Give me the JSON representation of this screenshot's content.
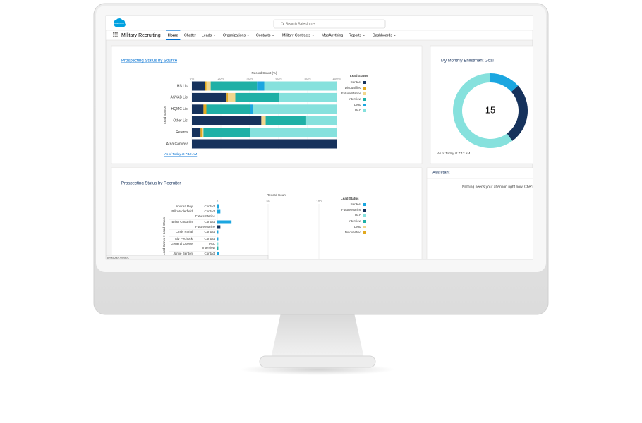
{
  "header": {
    "logo": "salesforce",
    "search_placeholder": "Search Salesforce"
  },
  "nav": {
    "app_name": "Military Recruiting",
    "tabs": [
      {
        "label": "Home",
        "active": true,
        "dropdown": false
      },
      {
        "label": "Chatter",
        "active": false,
        "dropdown": false
      },
      {
        "label": "Leads",
        "active": false,
        "dropdown": true
      },
      {
        "label": "Organizations",
        "active": false,
        "dropdown": true
      },
      {
        "label": "Contacts",
        "active": false,
        "dropdown": true
      },
      {
        "label": "Military Contracts",
        "active": false,
        "dropdown": true
      },
      {
        "label": "MapAnything",
        "active": false,
        "dropdown": false
      },
      {
        "label": "Reports",
        "active": false,
        "dropdown": true
      },
      {
        "label": "Dashboards",
        "active": false,
        "dropdown": true
      }
    ]
  },
  "source_chart": {
    "type": "stacked-bar",
    "title": "Prospecting Status by Source",
    "x_axis_title": "Record Count (%)",
    "y_axis_title": "Lead Source",
    "xlim": [
      0,
      100
    ],
    "xticks": [
      {
        "value": 0,
        "label": "0%"
      },
      {
        "value": 20,
        "label": "20%"
      },
      {
        "value": 40,
        "label": "40%"
      },
      {
        "value": 60,
        "label": "60%"
      },
      {
        "value": 80,
        "label": "80%"
      },
      {
        "value": 100,
        "label": "100%"
      }
    ],
    "categories": [
      "HS List",
      "ASVAB List",
      "HQMC List",
      "Other List",
      "Referral",
      "Area Canvass"
    ],
    "legend_title": "Lead Status",
    "series": [
      {
        "name": "Contact",
        "color": "#16325c",
        "values": [
          9,
          24,
          8,
          48,
          6,
          100
        ]
      },
      {
        "name": "Disqualified",
        "color": "#e2a91f",
        "values": [
          1,
          1,
          2,
          0,
          1,
          0
        ]
      },
      {
        "name": "Future Marine",
        "color": "#f2d68d",
        "values": [
          3,
          5,
          0,
          3,
          1,
          0
        ]
      },
      {
        "name": "Interview",
        "color": "#1fb0a6",
        "values": [
          32,
          30,
          30,
          28,
          32,
          0
        ]
      },
      {
        "name": "Lead",
        "color": "#1ba6e0",
        "values": [
          5,
          0,
          2,
          0,
          0,
          0
        ]
      },
      {
        "name": "PAC",
        "color": "#86e1dd",
        "values": [
          50,
          40,
          58,
          21,
          60,
          0
        ]
      }
    ],
    "footer": "As of Today at 7:12 AM"
  },
  "goal_chart": {
    "type": "donut",
    "title": "My Monthly Enlistment Goal",
    "center_label": 15,
    "values": [
      2,
      4,
      9
    ],
    "colors": [
      "#1ba6e0",
      "#16325c",
      "#86e1dd"
    ],
    "footer": "As of Today at 7:12 AM"
  },
  "assistant": {
    "title": "Assistant",
    "message": "Nothing needs your attention right now. Chec"
  },
  "recruiter_chart": {
    "type": "bar",
    "title": "Prospecting Status by Recruiter",
    "x_axis_title": "Record Count",
    "y_axis_title": "Lead Owner > Lead Status",
    "xlim": [
      0,
      100
    ],
    "xticks": [
      0,
      50,
      100
    ],
    "rows": [
      {
        "owner": "Andrea Roy",
        "status": "Contact",
        "value": 2,
        "color": "#1ba6e0"
      },
      {
        "owner": "Bill Woolerfield",
        "status": "Contact",
        "value": 3,
        "color": "#1ba6e0"
      },
      {
        "owner": null,
        "status": "Future Marine",
        "value": 0,
        "color": "#16325c"
      },
      {
        "owner": "Brian Coughlin",
        "status": "Contact",
        "value": 14,
        "color": "#1ba6e0"
      },
      {
        "owner": null,
        "status": "Future Marine",
        "value": 3,
        "color": "#16325c"
      },
      {
        "owner": "Cindy Parial",
        "status": "Contact",
        "value": 1,
        "color": "#1ba6e0"
      },
      {
        "owner": "Ely Pechuck",
        "status": "Contact",
        "value": 1,
        "color": "#1ba6e0"
      },
      {
        "owner": "General Queue",
        "status": "PAC",
        "value": 1,
        "color": "#86e1dd"
      },
      {
        "owner": null,
        "status": "Interview",
        "value": 1,
        "color": "#1fb0a6"
      },
      {
        "owner": "Jamie Benton",
        "status": "Contact",
        "value": 2,
        "color": "#1ba6e0"
      }
    ],
    "legend_title": "Lead Status",
    "legend": [
      {
        "name": "Contact",
        "color": "#1ba6e0"
      },
      {
        "name": "Future Marine",
        "color": "#16325c"
      },
      {
        "name": "PAC",
        "color": "#86e1dd"
      },
      {
        "name": "Interview",
        "color": "#1fb0a6"
      },
      {
        "name": "Lead",
        "color": "#f2d68d"
      },
      {
        "name": "Disqualified",
        "color": "#e2a91f"
      }
    ]
  },
  "status_bar": "javascript:void(0);"
}
